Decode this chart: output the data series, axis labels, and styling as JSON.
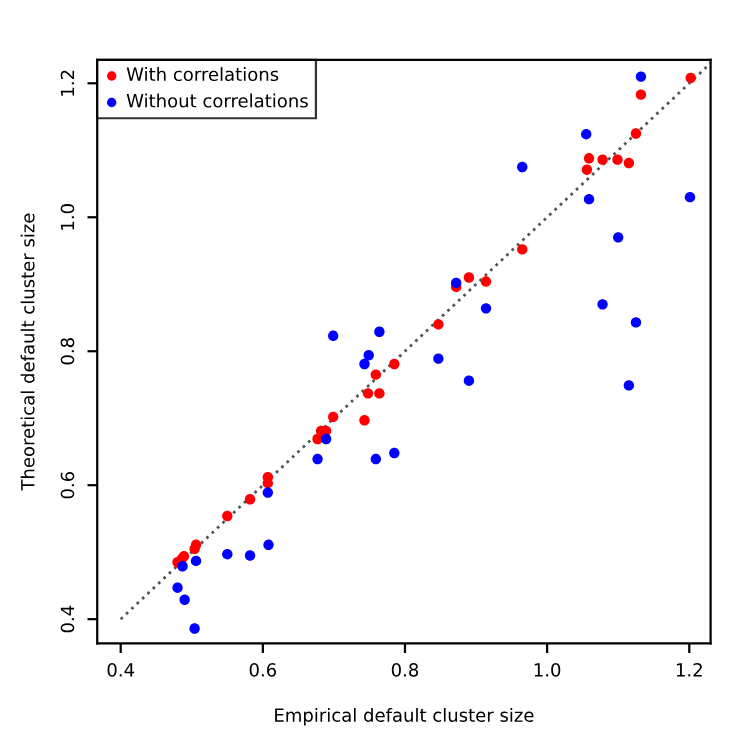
{
  "chart_data": {
    "type": "scatter",
    "xlabel": "Empirical default cluster size",
    "ylabel": "Theoretical default cluster size",
    "xlim": [
      0.367,
      1.23
    ],
    "ylim": [
      0.364,
      1.235
    ],
    "xticks": [
      0.4,
      0.6,
      0.8,
      {
        "value": 1,
        "label": "1.0"
      },
      1.2
    ],
    "yticks": [
      0.4,
      0.6,
      0.8,
      {
        "value": 1,
        "label": "1.0"
      },
      1.2
    ],
    "grid": false,
    "legend": "top left",
    "marker": "circle",
    "series": [
      {
        "name": "With correlations",
        "color": "#ff0000",
        "x": [
          1.202,
          1.132,
          1.125,
          1.059,
          1.056,
          1.078,
          1.099,
          1.115,
          0.965,
          0.872,
          0.89,
          0.914,
          0.847,
          0.785,
          0.759,
          0.748,
          0.764,
          0.743,
          0.699,
          0.682,
          0.689,
          0.677,
          0.607,
          0.607,
          0.582,
          0.55,
          0.506,
          0.504,
          0.489,
          0.486,
          0.48
        ],
        "values": [
          1.208,
          1.183,
          1.125,
          1.088,
          1.071,
          1.086,
          1.086,
          1.081,
          0.952,
          0.896,
          0.91,
          0.904,
          0.84,
          0.781,
          0.765,
          0.737,
          0.737,
          0.697,
          0.702,
          0.681,
          0.681,
          0.669,
          0.612,
          0.603,
          0.579,
          0.554,
          0.511,
          0.505,
          0.494,
          0.49,
          0.485
        ]
      },
      {
        "name": "Without correlations",
        "color": "#0000ff",
        "x": [
          1.132,
          1.055,
          0.965,
          1.059,
          1.201,
          1.1,
          1.078,
          1.125,
          1.115,
          0.914,
          0.872,
          0.699,
          0.764,
          0.749,
          0.743,
          0.847,
          0.89,
          0.689,
          0.677,
          0.759,
          0.785,
          0.607,
          0.608,
          0.582,
          0.55,
          0.506,
          0.487,
          0.48,
          0.49,
          0.504
        ],
        "values": [
          1.21,
          1.124,
          1.075,
          1.027,
          1.03,
          0.97,
          0.87,
          0.843,
          0.749,
          0.864,
          0.902,
          0.823,
          0.829,
          0.794,
          0.781,
          0.789,
          0.756,
          0.669,
          0.639,
          0.639,
          0.648,
          0.589,
          0.511,
          0.495,
          0.497,
          0.487,
          0.479,
          0.447,
          0.429,
          0.386
        ]
      },
      {
        "type": "line",
        "color": "#555555",
        "line_style": "dotted",
        "marker": "none",
        "x": [
          0.4,
          1.23
        ],
        "values": [
          0.4,
          1.23
        ]
      }
    ]
  }
}
